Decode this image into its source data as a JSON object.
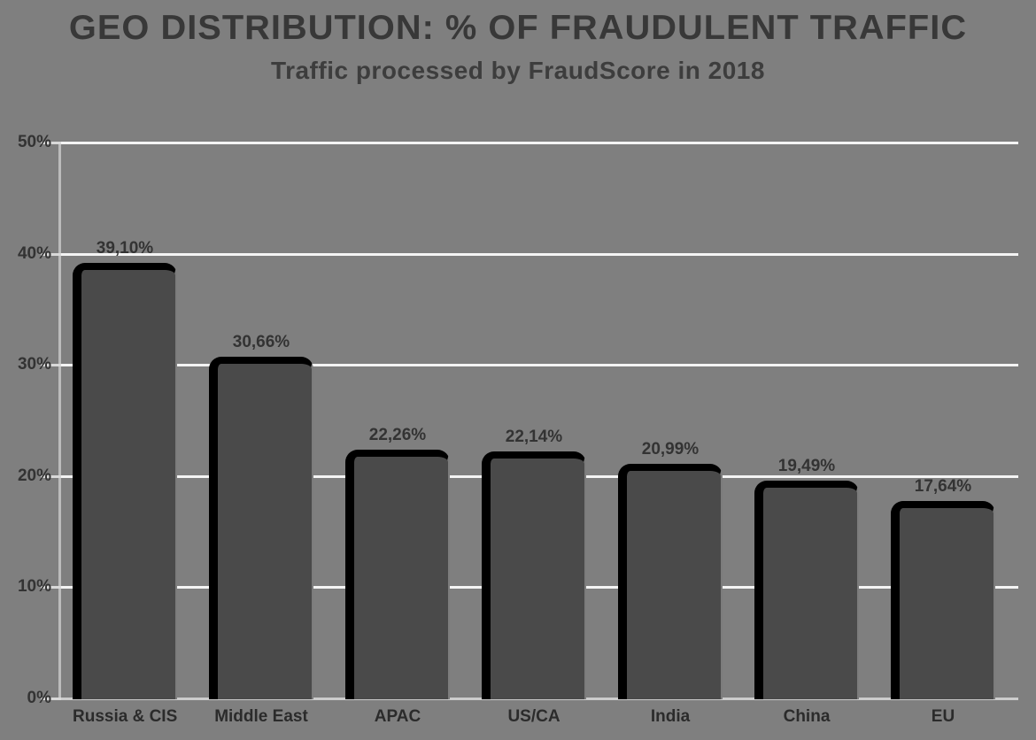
{
  "header": {
    "title": "GEO DISTRIBUTION: % OF FRAUDULENT TRAFFIC",
    "subtitle": "Traffic processed by FraudScore in 2018"
  },
  "chart_data": {
    "type": "bar",
    "title": "GEO DISTRIBUTION: % OF FRAUDULENT TRAFFIC",
    "subtitle": "Traffic processed by FraudScore in 2018",
    "categories": [
      "Russia & CIS",
      "Middle East",
      "APAC",
      "US/CA",
      "India",
      "China",
      "EU"
    ],
    "values": [
      39.1,
      30.66,
      22.26,
      22.14,
      20.99,
      19.49,
      17.64
    ],
    "value_labels": [
      "39,10%",
      "30,66%",
      "22,26%",
      "22,14%",
      "20,99%",
      "19,49%",
      "17,64%"
    ],
    "xlabel": "",
    "ylabel": "",
    "ylim": [
      0,
      50
    ],
    "yticks": [
      0,
      10,
      20,
      30,
      40,
      50
    ],
    "ytick_labels": [
      "0%",
      "10%",
      "20%",
      "30%",
      "40%",
      "50%"
    ],
    "grid": "horizontal",
    "legend": "none"
  },
  "colors": {
    "background": "#7f7f7f",
    "bar_fill": "#4a4a4a",
    "bar_border": "#000000",
    "gridline": "#f4f4f4",
    "axis_line": "#bcbcbc",
    "title_text": "#383838",
    "label_text": "#333333"
  }
}
